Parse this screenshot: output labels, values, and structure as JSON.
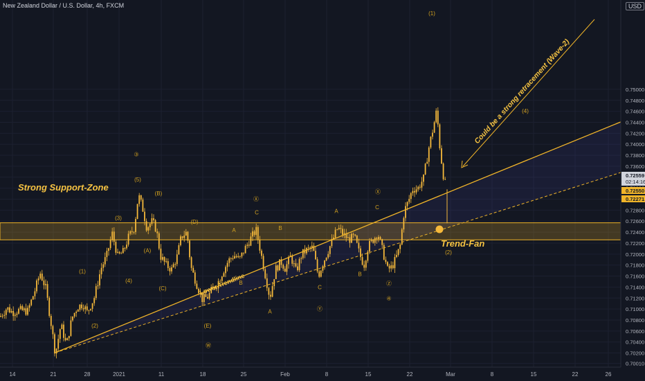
{
  "header": {
    "symbol_title": "New Zealand Dollar / U.S. Dollar, 4h, FXCM",
    "currency": "USD"
  },
  "colors": {
    "background": "#131722",
    "candle": "#f6b93b",
    "zone": "#f0b429",
    "text": "#b2b5be",
    "last_price_bg": "#d1d4dc",
    "grid": "#1c2030"
  },
  "price_badges": [
    {
      "label": "0.72559",
      "sub": "02:14:16",
      "style": "last"
    },
    {
      "label": "0.72550",
      "style": "zone"
    },
    {
      "label": "0.72271",
      "style": "zone"
    }
  ],
  "chart_data": {
    "type": "candlestick",
    "title": "New Zealand Dollar / U.S. Dollar, 4h, FXCM",
    "y_axis": {
      "range": [
        0.6998,
        0.7655
      ],
      "ticks": [
        "0.70010",
        "0.70200",
        "0.70400",
        "0.70600",
        "0.70800",
        "0.71000",
        "0.71200",
        "0.71400",
        "0.71600",
        "0.71800",
        "0.72000",
        "0.72200",
        "0.72400",
        "0.72600",
        "0.72800",
        "0.73000",
        "0.73200",
        "0.73400",
        "0.73600",
        "0.73800",
        "0.74000",
        "0.74200",
        "0.74400",
        "0.74600",
        "0.74800",
        "0.75000"
      ]
    },
    "x_axis": {
      "labels": [
        "14",
        "21",
        "28",
        "2021",
        "11",
        "18",
        "25",
        "Feb",
        "8",
        "15",
        "22",
        "Mar",
        "8",
        "15",
        "22",
        "26"
      ],
      "label_pos": [
        18,
        77,
        126,
        172,
        233,
        293,
        352,
        412,
        472,
        532,
        592,
        651,
        711,
        771,
        831,
        879
      ]
    },
    "price_path": [
      [
        0,
        0.7086
      ],
      [
        10,
        0.7102
      ],
      [
        18,
        0.7094
      ],
      [
        28,
        0.7098
      ],
      [
        40,
        0.7096
      ],
      [
        50,
        0.7132
      ],
      [
        58,
        0.7166
      ],
      [
        66,
        0.7138
      ],
      [
        74,
        0.7072
      ],
      [
        80,
        0.7018
      ],
      [
        88,
        0.7072
      ],
      [
        96,
        0.7034
      ],
      [
        104,
        0.7084
      ],
      [
        112,
        0.7104
      ],
      [
        120,
        0.7109
      ],
      [
        126,
        0.7094
      ],
      [
        136,
        0.712
      ],
      [
        146,
        0.7174
      ],
      [
        154,
        0.7196
      ],
      [
        162,
        0.7238
      ],
      [
        170,
        0.7196
      ],
      [
        178,
        0.7204
      ],
      [
        186,
        0.7232
      ],
      [
        194,
        0.7248
      ],
      [
        200,
        0.7308
      ],
      [
        206,
        0.7284
      ],
      [
        212,
        0.7248
      ],
      [
        220,
        0.726
      ],
      [
        226,
        0.7244
      ],
      [
        232,
        0.7196
      ],
      [
        240,
        0.718
      ],
      [
        248,
        0.7172
      ],
      [
        256,
        0.7196
      ],
      [
        262,
        0.7232
      ],
      [
        270,
        0.724
      ],
      [
        276,
        0.7176
      ],
      [
        284,
        0.7146
      ],
      [
        292,
        0.7118
      ],
      [
        300,
        0.7122
      ],
      [
        308,
        0.7138
      ],
      [
        314,
        0.7146
      ],
      [
        322,
        0.7168
      ],
      [
        330,
        0.7188
      ],
      [
        338,
        0.7198
      ],
      [
        346,
        0.719
      ],
      [
        354,
        0.721
      ],
      [
        362,
        0.7228
      ],
      [
        370,
        0.7244
      ],
      [
        376,
        0.7208
      ],
      [
        382,
        0.717
      ],
      [
        390,
        0.712
      ],
      [
        398,
        0.7172
      ],
      [
        406,
        0.7186
      ],
      [
        412,
        0.7174
      ],
      [
        420,
        0.7196
      ],
      [
        428,
        0.7168
      ],
      [
        436,
        0.72
      ],
      [
        444,
        0.7208
      ],
      [
        452,
        0.7212
      ],
      [
        460,
        0.716
      ],
      [
        466,
        0.7182
      ],
      [
        472,
        0.72
      ],
      [
        480,
        0.7224
      ],
      [
        488,
        0.7248
      ],
      [
        496,
        0.7236
      ],
      [
        504,
        0.7226
      ],
      [
        512,
        0.7232
      ],
      [
        520,
        0.7198
      ],
      [
        526,
        0.718
      ],
      [
        532,
        0.7214
      ],
      [
        540,
        0.7228
      ],
      [
        546,
        0.7238
      ],
      [
        552,
        0.721
      ],
      [
        560,
        0.7172
      ],
      [
        566,
        0.7176
      ],
      [
        572,
        0.7192
      ],
      [
        578,
        0.7214
      ],
      [
        584,
        0.7278
      ],
      [
        590,
        0.7296
      ],
      [
        596,
        0.7318
      ],
      [
        604,
        0.732
      ],
      [
        612,
        0.7338
      ],
      [
        620,
        0.7396
      ],
      [
        626,
        0.743
      ],
      [
        631,
        0.7462
      ],
      [
        636,
        0.7388
      ],
      [
        641,
        0.734
      ],
      [
        646,
        0.7316
      ],
      [
        646,
        0.7256
      ]
    ],
    "annotations": {
      "support_zone": "Strong Support-Zone",
      "lower_trendline": "Lower Trendline",
      "trend_fan": "Trend-Fan",
      "retracement_note": "Could be a strong retracement (Wave-2)"
    },
    "wave_labels": [
      {
        "text": "(2)",
        "x": 137,
        "p": 0.7066
      },
      {
        "text": "(1)",
        "x": 119,
        "p": 0.7165
      },
      {
        "text": "(3)",
        "x": 171,
        "p": 0.7262
      },
      {
        "text": "(4)",
        "x": 186,
        "p": 0.7148
      },
      {
        "text": "(5)",
        "x": 199,
        "p": 0.7332
      },
      {
        "text": "③",
        "x": 197,
        "p": 0.7378
      },
      {
        "text": "(A)",
        "x": 213,
        "p": 0.7203
      },
      {
        "text": "(B)",
        "x": 229,
        "p": 0.7307
      },
      {
        "text": "(C)",
        "x": 235,
        "p": 0.7134
      },
      {
        "text": "(D)",
        "x": 281,
        "p": 0.7255
      },
      {
        "text": "(E)",
        "x": 300,
        "p": 0.7066
      },
      {
        "text": "Ⓦ",
        "x": 301,
        "p": 0.703
      },
      {
        "text": "A",
        "x": 338,
        "p": 0.724
      },
      {
        "text": "B",
        "x": 348,
        "p": 0.7144
      },
      {
        "text": "C",
        "x": 371,
        "p": 0.7272
      },
      {
        "text": "Ⓧ",
        "x": 370,
        "p": 0.7297
      },
      {
        "text": "B",
        "x": 405,
        "p": 0.7244
      },
      {
        "text": "A",
        "x": 390,
        "p": 0.7092
      },
      {
        "text": "C",
        "x": 462,
        "p": 0.7136
      },
      {
        "text": "Ⓨ",
        "x": 462,
        "p": 0.7097
      },
      {
        "text": "A",
        "x": 486,
        "p": 0.7275
      },
      {
        "text": "B",
        "x": 520,
        "p": 0.716
      },
      {
        "text": "C",
        "x": 545,
        "p": 0.7282
      },
      {
        "text": "Ⓧ",
        "x": 546,
        "p": 0.731
      },
      {
        "text": "Ⓩ",
        "x": 562,
        "p": 0.7143
      },
      {
        "text": "④",
        "x": 562,
        "p": 0.7116
      },
      {
        "text": "(1)",
        "x": 624,
        "p": 0.7635
      },
      {
        "text": "(2)",
        "x": 648,
        "p": 0.72
      },
      {
        "text": "(4)",
        "x": 759,
        "p": 0.7457
      }
    ]
  }
}
